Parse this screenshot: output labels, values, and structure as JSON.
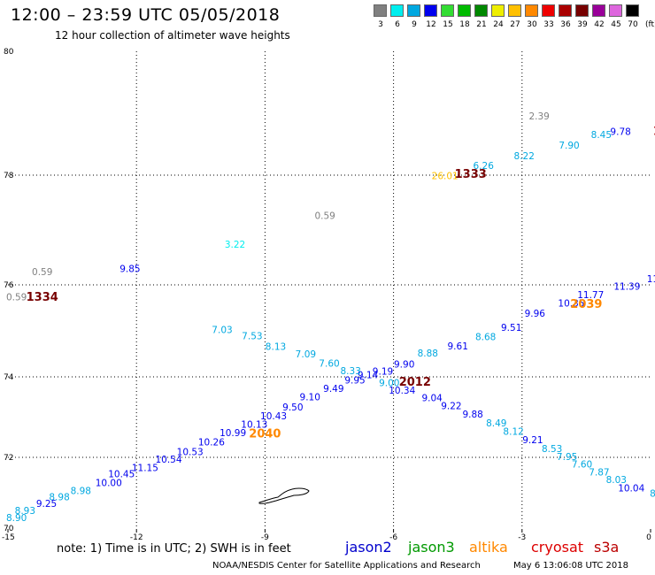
{
  "header": {
    "title": "12:00 – 23:59 UTC 05/05/2018",
    "subtitle": "12 hour collection of altimeter wave heights"
  },
  "legend": {
    "units": "(ft)",
    "items": [
      {
        "label": "3",
        "color": "#808080"
      },
      {
        "label": "6",
        "color": "#00eeee"
      },
      {
        "label": "9",
        "color": "#00a8e0"
      },
      {
        "label": "12",
        "color": "#0000ee"
      },
      {
        "label": "15",
        "color": "#33dd33"
      },
      {
        "label": "18",
        "color": "#00bb00"
      },
      {
        "label": "21",
        "color": "#008800"
      },
      {
        "label": "24",
        "color": "#eeee00"
      },
      {
        "label": "27",
        "color": "#ffc000"
      },
      {
        "label": "30",
        "color": "#ff8800"
      },
      {
        "label": "33",
        "color": "#ee0000"
      },
      {
        "label": "36",
        "color": "#aa0000"
      },
      {
        "label": "39",
        "color": "#770000"
      },
      {
        "label": "42",
        "color": "#990099"
      },
      {
        "label": "45",
        "color": "#dd66dd"
      },
      {
        "label": "70",
        "color": "#000000"
      }
    ]
  },
  "map": {
    "lon_ticks": [
      "-15",
      "-12",
      "-9",
      "-6",
      "-3",
      "0"
    ],
    "lat_ticks": [
      "80",
      "78",
      "76",
      "74",
      "72",
      "70"
    ],
    "gridlines_dotted": true,
    "observations": [
      {
        "text": "2.39",
        "lon": -2.6,
        "lat": 78.9,
        "color": "#808080"
      },
      {
        "text": "9.78",
        "lon": -0.7,
        "lat": 78.65,
        "color": "#0000ee"
      },
      {
        "text": "8.45",
        "lon": -1.15,
        "lat": 78.6,
        "color": "#00a8e0"
      },
      {
        "text": "7.90",
        "lon": -1.9,
        "lat": 78.43,
        "color": "#00a8e0"
      },
      {
        "text": "8.22",
        "lon": -2.95,
        "lat": 78.26,
        "color": "#00a8e0"
      },
      {
        "text": "6.26",
        "lon": -3.9,
        "lat": 78.1,
        "color": "#00a8e0"
      },
      {
        "text": "26.01",
        "lon": -4.8,
        "lat": 77.93,
        "color": "#ffc000"
      },
      {
        "text": "0.59",
        "lon": -7.6,
        "lat": 77.2,
        "color": "#808080"
      },
      {
        "text": "3.22",
        "lon": -9.7,
        "lat": 76.68,
        "color": "#00eeee"
      },
      {
        "text": "0.59",
        "lon": -14.2,
        "lat": 76.18,
        "color": "#808080"
      },
      {
        "text": "9.85",
        "lon": -12.15,
        "lat": 76.23,
        "color": "#0000ee"
      },
      {
        "text": "0.59",
        "lon": -14.8,
        "lat": 75.66,
        "color": "#808080"
      },
      {
        "text": "11",
        "lon": 0.05,
        "lat": 76.05,
        "color": "#0000ee"
      },
      {
        "text": "11.39",
        "lon": -0.55,
        "lat": 75.89,
        "color": "#0000ee"
      },
      {
        "text": "11.77",
        "lon": -1.4,
        "lat": 75.71,
        "color": "#0000ee"
      },
      {
        "text": "10.35",
        "lon": -1.85,
        "lat": 75.53,
        "color": "#0000ee"
      },
      {
        "text": "9.96",
        "lon": -2.7,
        "lat": 75.31,
        "color": "#0000ee"
      },
      {
        "text": "9.51",
        "lon": -3.25,
        "lat": 75.0,
        "color": "#0000ee"
      },
      {
        "text": "8.68",
        "lon": -3.85,
        "lat": 74.8,
        "color": "#00a8e0"
      },
      {
        "text": "9.61",
        "lon": -4.5,
        "lat": 74.6,
        "color": "#0000ee"
      },
      {
        "text": "8.88",
        "lon": -5.2,
        "lat": 74.44,
        "color": "#00a8e0"
      },
      {
        "text": "9.90",
        "lon": -5.75,
        "lat": 74.2,
        "color": "#0000ee"
      },
      {
        "text": "9.19",
        "lon": -6.25,
        "lat": 74.05,
        "color": "#0000ee"
      },
      {
        "text": "9.14",
        "lon": -6.6,
        "lat": 73.97,
        "color": "#0000ee"
      },
      {
        "text": "9.95",
        "lon": -6.9,
        "lat": 73.83,
        "color": "#0000ee"
      },
      {
        "text": "9.49",
        "lon": -7.4,
        "lat": 73.63,
        "color": "#0000ee"
      },
      {
        "text": "9.10",
        "lon": -7.95,
        "lat": 73.42,
        "color": "#0000ee"
      },
      {
        "text": "9.50",
        "lon": -8.35,
        "lat": 73.17,
        "color": "#0000ee"
      },
      {
        "text": "10.43",
        "lon": -8.8,
        "lat": 72.95,
        "color": "#0000ee"
      },
      {
        "text": "10.13",
        "lon": -9.25,
        "lat": 72.74,
        "color": "#0000ee"
      },
      {
        "text": "10.99",
        "lon": -9.75,
        "lat": 72.53,
        "color": "#0000ee"
      },
      {
        "text": "10.26",
        "lon": -10.25,
        "lat": 72.3,
        "color": "#0000ee"
      },
      {
        "text": "10.53",
        "lon": -10.75,
        "lat": 72.05,
        "color": "#0000ee"
      },
      {
        "text": "10.54",
        "lon": -11.25,
        "lat": 71.85,
        "color": "#0000ee"
      },
      {
        "text": "11.15",
        "lon": -11.8,
        "lat": 71.62,
        "color": "#0000ee"
      },
      {
        "text": "10.45",
        "lon": -12.35,
        "lat": 71.44,
        "color": "#0000ee"
      },
      {
        "text": "10.00",
        "lon": -12.65,
        "lat": 71.2,
        "color": "#0000ee"
      },
      {
        "text": "8.98",
        "lon": -13.3,
        "lat": 70.98,
        "color": "#00a8e0"
      },
      {
        "text": "8.98",
        "lon": -13.8,
        "lat": 70.8,
        "color": "#00a8e0"
      },
      {
        "text": "9.25",
        "lon": -14.1,
        "lat": 70.62,
        "color": "#0000ee"
      },
      {
        "text": "8.93",
        "lon": -14.6,
        "lat": 70.42,
        "color": "#00a8e0"
      },
      {
        "text": "8.90",
        "lon": -14.8,
        "lat": 70.22,
        "color": "#00a8e0"
      },
      {
        "text": "7.03",
        "lon": -10.0,
        "lat": 74.95,
        "color": "#00a8e0"
      },
      {
        "text": "7.53",
        "lon": -9.3,
        "lat": 74.82,
        "color": "#00a8e0"
      },
      {
        "text": "8.13",
        "lon": -8.75,
        "lat": 74.59,
        "color": "#00a8e0"
      },
      {
        "text": "7.09",
        "lon": -8.05,
        "lat": 74.42,
        "color": "#00a8e0"
      },
      {
        "text": "7.60",
        "lon": -7.5,
        "lat": 74.22,
        "color": "#00a8e0"
      },
      {
        "text": "8.33",
        "lon": -7.0,
        "lat": 74.06,
        "color": "#00a8e0"
      },
      {
        "text": "9.00",
        "lon": -6.1,
        "lat": 73.77,
        "color": "#00a8e0"
      },
      {
        "text": "10.34",
        "lon": -5.8,
        "lat": 73.58,
        "color": "#0000ee"
      },
      {
        "text": "9.04",
        "lon": -5.1,
        "lat": 73.4,
        "color": "#0000ee"
      },
      {
        "text": "9.22",
        "lon": -4.65,
        "lat": 73.2,
        "color": "#0000ee"
      },
      {
        "text": "9.88",
        "lon": -4.15,
        "lat": 72.99,
        "color": "#0000ee"
      },
      {
        "text": "8.49",
        "lon": -3.6,
        "lat": 72.77,
        "color": "#00a8e0"
      },
      {
        "text": "8.12",
        "lon": -3.2,
        "lat": 72.56,
        "color": "#00a8e0"
      },
      {
        "text": "9.21",
        "lon": -2.75,
        "lat": 72.35,
        "color": "#0000ee"
      },
      {
        "text": "8.53",
        "lon": -2.3,
        "lat": 72.13,
        "color": "#00a8e0"
      },
      {
        "text": "7.95",
        "lon": -1.95,
        "lat": 71.92,
        "color": "#00a8e0"
      },
      {
        "text": "7.60",
        "lon": -1.6,
        "lat": 71.72,
        "color": "#00a8e0"
      },
      {
        "text": "7.87",
        "lon": -1.2,
        "lat": 71.5,
        "color": "#00a8e0"
      },
      {
        "text": "8.03",
        "lon": -0.8,
        "lat": 71.28,
        "color": "#00a8e0"
      },
      {
        "text": "10.04",
        "lon": -0.45,
        "lat": 71.05,
        "color": "#0000ee"
      },
      {
        "text": "8",
        "lon": 0.05,
        "lat": 70.9,
        "color": "#00a8e0"
      }
    ],
    "pass_times": [
      {
        "text": "1333",
        "lon": -4.2,
        "lat": 77.95,
        "color": "#770000"
      },
      {
        "text": "1334",
        "lon": -14.2,
        "lat": 75.65,
        "color": "#770000"
      },
      {
        "text": "2039",
        "lon": -1.5,
        "lat": 75.5,
        "color": "#ff8800"
      },
      {
        "text": "2012",
        "lon": -5.5,
        "lat": 73.78,
        "color": "#770000"
      },
      {
        "text": "2040",
        "lon": -9.0,
        "lat": 72.5,
        "color": "#ff8800"
      },
      {
        "text": "1",
        "lon": 0.15,
        "lat": 78.65,
        "color": "#aa0000"
      }
    ]
  },
  "footer": {
    "note": "note: 1) Time is in UTC; 2) SWH is in feet",
    "satellites": [
      {
        "name": "jason2",
        "color": "#0000cc"
      },
      {
        "name": "jason3",
        "color": "#009900"
      },
      {
        "name": "altika",
        "color": "#ff8800"
      },
      {
        "name": "cryosat",
        "color": "#dd0000"
      },
      {
        "name": "s3a",
        "color": "#bb0000"
      }
    ],
    "credit": "NOAA/NESDIS Center for Satellite Applications and Research",
    "timestamp": "May  6 13:06:08 UTC 2018"
  }
}
